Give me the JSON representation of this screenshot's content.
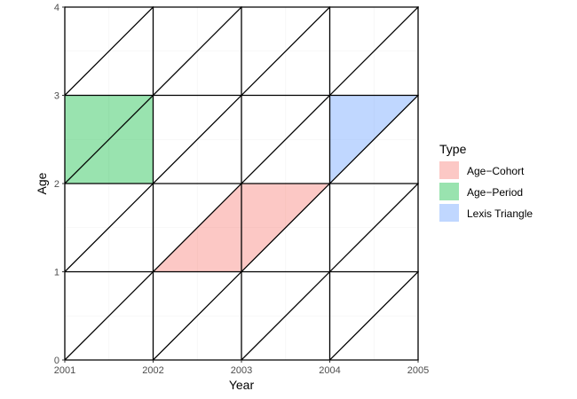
{
  "chart_data": {
    "type": "lexis",
    "xlabel": "Year",
    "ylabel": "Age",
    "xlim": [
      2001,
      2005
    ],
    "ylim": [
      0,
      4
    ],
    "x_ticks": [
      2001,
      2002,
      2003,
      2004,
      2005
    ],
    "y_ticks": [
      0,
      1,
      2,
      3,
      4
    ],
    "grid": true,
    "minor_grid": true,
    "lexis_lines": {
      "vertical_years": [
        2001,
        2002,
        2003,
        2004,
        2005
      ],
      "horizontal_ages": [
        0,
        1,
        2,
        3,
        4
      ],
      "diagonal_start_years": [
        2001,
        2002,
        2003,
        2004
      ],
      "diagonal_start_ages": [
        1,
        2,
        3
      ]
    },
    "legend": {
      "title": "Type",
      "position": "right",
      "entries": [
        {
          "label": "Age−Cohort",
          "color": "#F8766D"
        },
        {
          "label": "Age−Period",
          "color": "#00BA38"
        },
        {
          "label": "Lexis Triangle",
          "color": "#619CFF"
        }
      ]
    },
    "fill_opacity": 0.4,
    "shapes": [
      {
        "type": "Age−Cohort",
        "points": [
          [
            2002,
            1
          ],
          [
            2003,
            1
          ],
          [
            2004,
            2
          ],
          [
            2003,
            2
          ]
        ]
      },
      {
        "type": "Age−Period",
        "points": [
          [
            2001,
            2
          ],
          [
            2002,
            2
          ],
          [
            2002,
            3
          ],
          [
            2001,
            3
          ]
        ]
      },
      {
        "type": "Lexis Triangle",
        "points": [
          [
            2004,
            2
          ],
          [
            2005,
            3
          ],
          [
            2004,
            3
          ]
        ]
      }
    ]
  }
}
